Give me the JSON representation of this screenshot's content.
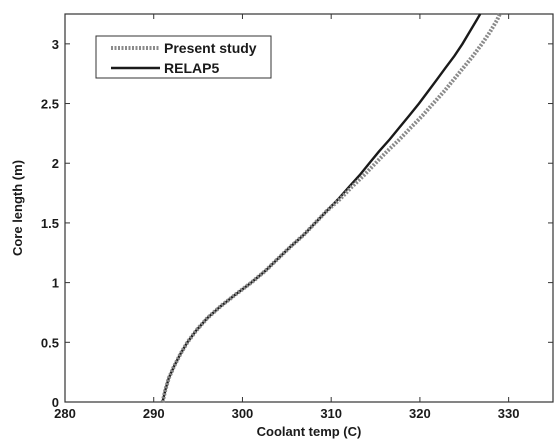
{
  "chart_data": {
    "type": "line",
    "xlabel": "Coolant temp (C)",
    "ylabel": "Core length (m)",
    "xlim": [
      280,
      335
    ],
    "ylim": [
      0,
      3.25
    ],
    "x_ticks": [
      "280",
      "290",
      "300",
      "310",
      "320",
      "330"
    ],
    "y_ticks": [
      "0",
      "0.5",
      "1",
      "1.5",
      "2",
      "2.5",
      "3"
    ],
    "grid": false,
    "legend_position": "top-left",
    "series": [
      {
        "name": "Present study",
        "style": "dotted",
        "color": "#8a8a8a",
        "points": [
          [
            291.0,
            0.0
          ],
          [
            291.3,
            0.1
          ],
          [
            291.7,
            0.2
          ],
          [
            292.3,
            0.3
          ],
          [
            293.0,
            0.4
          ],
          [
            293.8,
            0.5
          ],
          [
            294.8,
            0.6
          ],
          [
            296.0,
            0.7
          ],
          [
            297.5,
            0.8
          ],
          [
            299.2,
            0.9
          ],
          [
            301.0,
            1.0
          ],
          [
            302.6,
            1.1
          ],
          [
            304.0,
            1.2
          ],
          [
            305.4,
            1.3
          ],
          [
            306.9,
            1.4
          ],
          [
            308.2,
            1.5
          ],
          [
            309.5,
            1.6
          ],
          [
            311.0,
            1.7
          ],
          [
            312.3,
            1.8
          ],
          [
            313.7,
            1.9
          ],
          [
            315.0,
            2.0
          ],
          [
            316.3,
            2.1
          ],
          [
            317.7,
            2.2
          ],
          [
            319.0,
            2.3
          ],
          [
            320.3,
            2.4
          ],
          [
            321.5,
            2.5
          ],
          [
            322.7,
            2.6
          ],
          [
            323.8,
            2.7
          ],
          [
            324.9,
            2.8
          ],
          [
            326.0,
            2.9
          ],
          [
            327.0,
            3.0
          ],
          [
            327.9,
            3.1
          ],
          [
            328.7,
            3.2
          ],
          [
            329.0,
            3.25
          ]
        ]
      },
      {
        "name": "RELAP5",
        "style": "solid",
        "color": "#1a1a1a",
        "points": [
          [
            291.0,
            0.0
          ],
          [
            291.3,
            0.1
          ],
          [
            291.7,
            0.2
          ],
          [
            292.3,
            0.3
          ],
          [
            293.0,
            0.4
          ],
          [
            293.8,
            0.5
          ],
          [
            294.8,
            0.6
          ],
          [
            296.0,
            0.7
          ],
          [
            297.5,
            0.8
          ],
          [
            299.2,
            0.9
          ],
          [
            301.0,
            1.0
          ],
          [
            302.6,
            1.1
          ],
          [
            304.0,
            1.2
          ],
          [
            305.4,
            1.3
          ],
          [
            306.9,
            1.4
          ],
          [
            308.2,
            1.5
          ],
          [
            309.5,
            1.6
          ],
          [
            310.8,
            1.7
          ],
          [
            312.0,
            1.8
          ],
          [
            313.2,
            1.9
          ],
          [
            314.3,
            2.0
          ],
          [
            315.4,
            2.1
          ],
          [
            316.6,
            2.2
          ],
          [
            317.7,
            2.3
          ],
          [
            318.8,
            2.4
          ],
          [
            319.9,
            2.5
          ],
          [
            320.9,
            2.6
          ],
          [
            321.9,
            2.7
          ],
          [
            322.9,
            2.8
          ],
          [
            323.9,
            2.9
          ],
          [
            324.8,
            3.0
          ],
          [
            325.6,
            3.1
          ],
          [
            326.4,
            3.2
          ],
          [
            326.8,
            3.25
          ]
        ]
      }
    ]
  }
}
